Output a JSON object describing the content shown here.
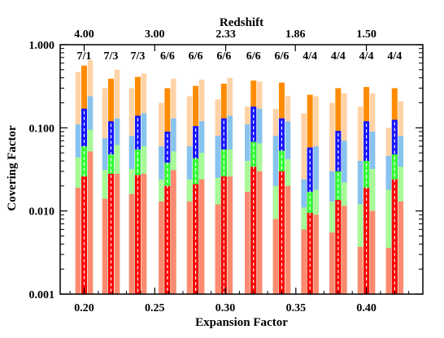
{
  "chart_data": {
    "type": "bar",
    "xlabel": "Expansion Factor",
    "ylabel": "Covering Factor",
    "top_axis_label": "Redshift",
    "y_scale": "log",
    "ylim": [
      0.001,
      1.0
    ],
    "xlim": [
      0.183,
      0.44
    ],
    "x_ticks": [
      0.2,
      0.25,
      0.3,
      0.35,
      0.4
    ],
    "x_tick_labels": [
      "0.20",
      "0.25",
      "0.30",
      "0.35",
      "0.40"
    ],
    "y_ticks": [
      0.001,
      0.01,
      0.1,
      1.0
    ],
    "y_tick_labels": [
      "0.001",
      "0.010",
      "0.100",
      "1.000"
    ],
    "redshift_ticks": [
      4.0,
      3.0,
      2.33,
      1.86,
      1.5
    ],
    "redshift_tick_labels": [
      "4.00",
      "3.00",
      "2.33",
      "1.86",
      "1.50"
    ],
    "colors": {
      "orange": "#ff8c00",
      "light_orange": "#ffd2a6",
      "blue": "#1414ff",
      "light_blue": "#87c3f0",
      "green": "#32ff32",
      "light_green": "#a8fa96",
      "red": "#ff0000",
      "salmon": "#ff8a70"
    },
    "groups": [
      {
        "x": 0.2,
        "ratio": "7/1",
        "left": {
          "red": 0.019,
          "green": 0.044,
          "blue": 0.11,
          "orange": 0.47
        },
        "center": {
          "red": 0.026,
          "green": 0.06,
          "blue": 0.17,
          "orange": 0.56
        },
        "right": {
          "red": 0.052,
          "green": 0.095,
          "blue": 0.24,
          "orange": 0.65
        }
      },
      {
        "x": 0.219,
        "ratio": "7/3",
        "left": {
          "red": 0.014,
          "green": 0.031,
          "blue": 0.075,
          "orange": 0.3
        },
        "center": {
          "red": 0.028,
          "green": 0.048,
          "blue": 0.12,
          "orange": 0.39
        },
        "right": {
          "red": 0.028,
          "green": 0.062,
          "blue": 0.13,
          "orange": 0.5
        }
      },
      {
        "x": 0.238,
        "ratio": "7/3",
        "left": {
          "red": 0.016,
          "green": 0.032,
          "blue": 0.08,
          "orange": 0.3
        },
        "center": {
          "red": 0.027,
          "green": 0.055,
          "blue": 0.14,
          "orange": 0.41
        },
        "right": {
          "red": 0.028,
          "green": 0.06,
          "blue": 0.15,
          "orange": 0.45
        }
      },
      {
        "x": 0.259,
        "ratio": "6/6",
        "left": {
          "red": 0.013,
          "green": 0.024,
          "blue": 0.06,
          "orange": 0.2
        },
        "center": {
          "red": 0.02,
          "green": 0.038,
          "blue": 0.09,
          "orange": 0.3
        },
        "right": {
          "red": 0.031,
          "green": 0.052,
          "blue": 0.13,
          "orange": 0.39
        }
      },
      {
        "x": 0.279,
        "ratio": "6/6",
        "left": {
          "red": 0.013,
          "green": 0.024,
          "blue": 0.06,
          "orange": 0.24
        },
        "center": {
          "red": 0.021,
          "green": 0.043,
          "blue": 0.105,
          "orange": 0.32
        },
        "right": {
          "red": 0.024,
          "green": 0.05,
          "blue": 0.12,
          "orange": 0.38
        }
      },
      {
        "x": 0.299,
        "ratio": "6/6",
        "left": {
          "red": 0.012,
          "green": 0.025,
          "blue": 0.08,
          "orange": 0.22
        },
        "center": {
          "red": 0.026,
          "green": 0.055,
          "blue": 0.13,
          "orange": 0.34
        },
        "right": {
          "red": 0.026,
          "green": 0.055,
          "blue": 0.14,
          "orange": 0.4
        }
      },
      {
        "x": 0.32,
        "ratio": "6/6",
        "left": {
          "red": 0.017,
          "green": 0.04,
          "blue": 0.11,
          "orange": 0.18
        },
        "center": {
          "red": 0.034,
          "green": 0.068,
          "blue": 0.18,
          "orange": 0.37
        },
        "right": {
          "red": 0.03,
          "green": 0.065,
          "blue": 0.17,
          "orange": 0.36
        }
      },
      {
        "x": 0.34,
        "ratio": "6/6",
        "left": {
          "red": 0.008,
          "green": 0.02,
          "blue": 0.08,
          "orange": 0.17
        },
        "center": {
          "red": 0.03,
          "green": 0.053,
          "blue": 0.13,
          "orange": 0.35
        },
        "right": {
          "red": 0.02,
          "green": 0.042,
          "blue": 0.12,
          "orange": 0.24
        }
      },
      {
        "x": 0.36,
        "ratio": "4/4",
        "left": {
          "red": 0.006,
          "green": 0.011,
          "blue": 0.024,
          "orange": 0.15
        },
        "center": {
          "red": 0.0095,
          "green": 0.017,
          "blue": 0.058,
          "orange": 0.25
        },
        "right": {
          "red": 0.009,
          "green": 0.018,
          "blue": 0.06,
          "orange": 0.24
        }
      },
      {
        "x": 0.38,
        "ratio": "4/4",
        "left": {
          "red": 0.0055,
          "green": 0.013,
          "blue": 0.03,
          "orange": 0.2
        },
        "center": {
          "red": 0.0135,
          "green": 0.03,
          "blue": 0.092,
          "orange": 0.3
        },
        "right": {
          "red": 0.0115,
          "green": 0.022,
          "blue": 0.07,
          "orange": 0.26
        }
      },
      {
        "x": 0.4,
        "ratio": "4/4",
        "left": {
          "red": 0.0037,
          "green": 0.012,
          "blue": 0.04,
          "orange": 0.18
        },
        "center": {
          "red": 0.019,
          "green": 0.04,
          "blue": 0.12,
          "orange": 0.31
        },
        "right": {
          "red": 0.01,
          "green": 0.032,
          "blue": 0.09,
          "orange": 0.26
        }
      },
      {
        "x": 0.42,
        "ratio": "4/4",
        "left": {
          "red": 0.0036,
          "green": 0.018,
          "blue": 0.046,
          "orange": 0.1
        },
        "center": {
          "red": 0.024,
          "green": 0.048,
          "blue": 0.125,
          "orange": 0.3
        },
        "right": {
          "red": 0.013,
          "green": 0.034,
          "blue": 0.08,
          "orange": 0.21
        }
      }
    ]
  }
}
